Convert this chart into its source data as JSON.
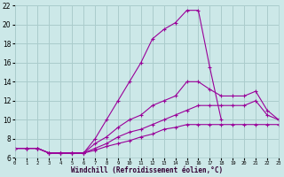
{
  "xlabel": "Windchill (Refroidissement éolien,°C)",
  "bg_color": "#cce8e8",
  "grid_color": "#aacccc",
  "line_color": "#990099",
  "xlim": [
    0,
    23
  ],
  "ylim": [
    6,
    22
  ],
  "yticks": [
    6,
    8,
    10,
    12,
    14,
    16,
    18,
    20,
    22
  ],
  "xticks": [
    0,
    1,
    2,
    3,
    4,
    5,
    6,
    7,
    8,
    9,
    10,
    11,
    12,
    13,
    14,
    15,
    16,
    17,
    18,
    19,
    20,
    21,
    22,
    23
  ],
  "lines": [
    {
      "x": [
        0,
        1,
        2,
        3,
        4,
        5,
        6,
        7,
        8,
        9,
        10,
        11,
        12,
        13,
        14,
        15,
        16,
        17,
        18
      ],
      "y": [
        7,
        7,
        7,
        6.5,
        6.5,
        6.5,
        6.5,
        8,
        10,
        12,
        14,
        16,
        18.5,
        19.5,
        20.2,
        21.5,
        21.5,
        15.5,
        10
      ]
    },
    {
      "x": [
        0,
        1,
        2,
        3,
        4,
        5,
        6,
        7,
        8,
        9,
        10,
        11,
        12,
        13,
        14,
        15,
        16,
        17,
        18,
        19,
        20,
        21,
        22,
        23
      ],
      "y": [
        7,
        7,
        7,
        6.5,
        6.5,
        6.5,
        6.5,
        7.5,
        8.2,
        9.2,
        10,
        10.5,
        11.5,
        12,
        12.5,
        14,
        14,
        13.2,
        12.5,
        12.5,
        12.5,
        13,
        11,
        10
      ]
    },
    {
      "x": [
        0,
        1,
        2,
        3,
        4,
        5,
        6,
        7,
        8,
        9,
        10,
        11,
        12,
        13,
        14,
        15,
        16,
        17,
        18,
        19,
        20,
        21,
        22,
        23
      ],
      "y": [
        7,
        7,
        7,
        6.5,
        6.5,
        6.5,
        6.5,
        7,
        7.5,
        8.2,
        8.7,
        9,
        9.5,
        10,
        10.5,
        11,
        11.5,
        11.5,
        11.5,
        11.5,
        11.5,
        12,
        10.5,
        10
      ]
    },
    {
      "x": [
        0,
        1,
        2,
        3,
        4,
        5,
        6,
        7,
        8,
        9,
        10,
        11,
        12,
        13,
        14,
        15,
        16,
        17,
        18,
        19,
        20,
        21,
        22,
        23
      ],
      "y": [
        7,
        7,
        7,
        6.5,
        6.5,
        6.5,
        6.5,
        6.8,
        7.2,
        7.5,
        7.8,
        8.2,
        8.5,
        9.0,
        9.2,
        9.5,
        9.5,
        9.5,
        9.5,
        9.5,
        9.5,
        9.5,
        9.5,
        9.5
      ]
    }
  ]
}
